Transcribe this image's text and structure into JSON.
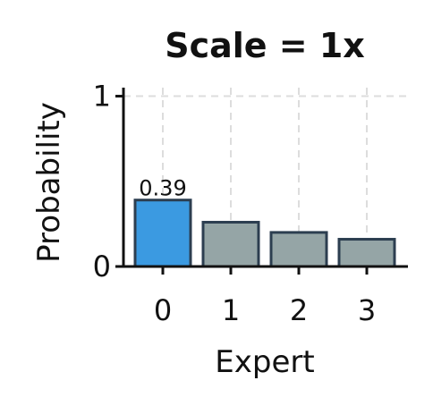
{
  "chart_data": {
    "type": "bar",
    "title": "Scale = 1x",
    "xlabel": "Expert",
    "ylabel": "Probability",
    "categories": [
      "0",
      "1",
      "2",
      "3"
    ],
    "values": [
      0.39,
      0.26,
      0.2,
      0.16
    ],
    "data_labels": [
      "0.39",
      "",
      "",
      ""
    ],
    "ylim": [
      0,
      1.05
    ],
    "yticks": [
      0,
      1
    ],
    "ytick_labels": [
      "0",
      "1"
    ],
    "grid": true,
    "highlight_index": 0,
    "colors": {
      "highlight": "#3b9ae1",
      "bar": "#95a5a6",
      "edge": "#2c3e50",
      "grid": "#dddddd",
      "axis": "#111111"
    }
  }
}
